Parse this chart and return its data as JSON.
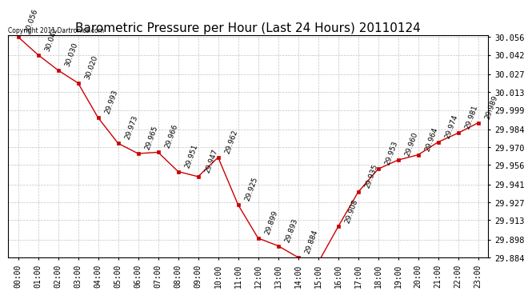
{
  "title": "Barometric Pressure per Hour (Last 24 Hours) 20110124",
  "copyright": "Copyright 2011 Dartronics.com",
  "hours": [
    "00:00",
    "01:00",
    "02:00",
    "03:00",
    "04:00",
    "05:00",
    "06:00",
    "07:00",
    "08:00",
    "09:00",
    "10:00",
    "11:00",
    "12:00",
    "13:00",
    "14:00",
    "15:00",
    "16:00",
    "17:00",
    "18:00",
    "19:00",
    "20:00",
    "21:00",
    "22:00",
    "23:00"
  ],
  "values": [
    30.056,
    30.042,
    30.03,
    30.02,
    29.993,
    29.973,
    29.965,
    29.966,
    29.951,
    29.947,
    29.962,
    29.925,
    29.899,
    29.893,
    29.884,
    29.88,
    29.908,
    29.935,
    29.953,
    29.96,
    29.964,
    29.974,
    29.981,
    29.989
  ],
  "line_color": "#cc0000",
  "marker_color": "#cc0000",
  "bg_color": "#ffffff",
  "grid_color": "#aaaaaa",
  "ylim_min": 29.884,
  "ylim_max": 30.056,
  "yticks": [
    30.056,
    30.042,
    30.027,
    30.013,
    29.999,
    29.984,
    29.97,
    29.956,
    29.941,
    29.927,
    29.913,
    29.898,
    29.884
  ],
  "title_fontsize": 11,
  "tick_fontsize": 7,
  "annot_fontsize": 6.5
}
